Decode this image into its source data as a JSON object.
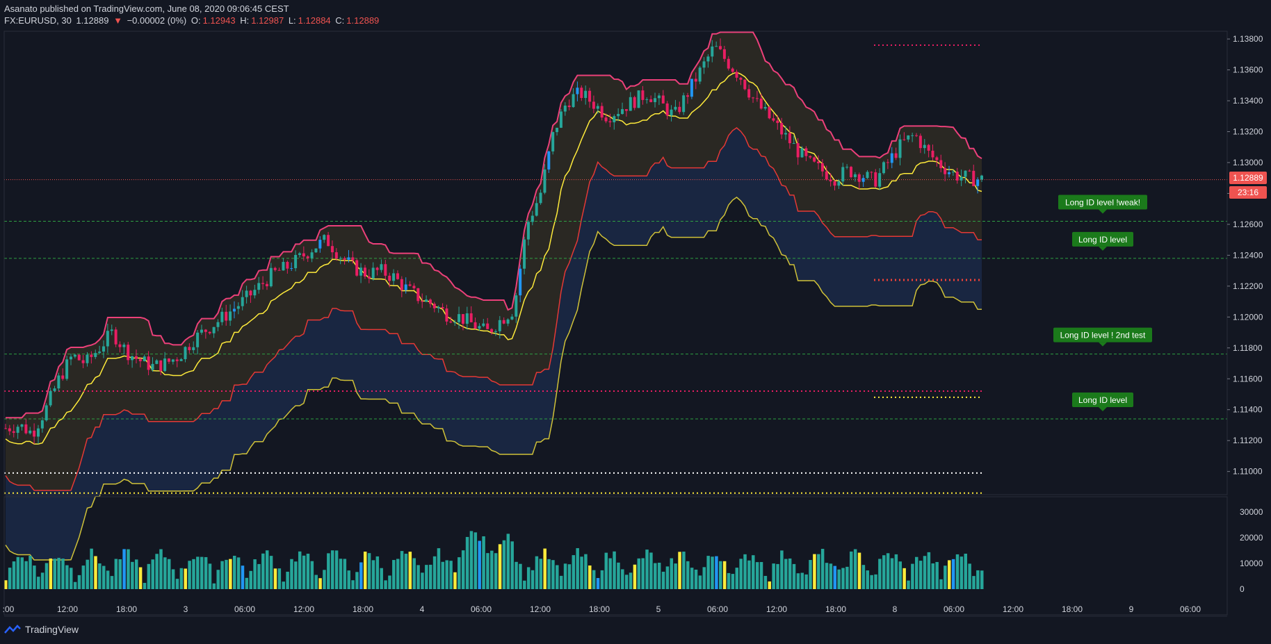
{
  "header": {
    "publisher": "Asanato",
    "published_text": "published on TradingView.com, June 08, 2020 09:06:45 CEST",
    "symbol": "FX:EURUSD, 30",
    "last": "1.12889",
    "change": "−0.00002 (0%)",
    "o_label": "O:",
    "o": "1.12943",
    "h_label": "H:",
    "h": "1.12987",
    "l_label": "L:",
    "l": "1.12884",
    "c_label": "C:",
    "c": "1.12889"
  },
  "price_tag": {
    "price": "1.12889",
    "countdown": "23:16"
  },
  "footer": {
    "brand": "TradingView"
  },
  "colors": {
    "background": "#131722",
    "bull": "#26a69a",
    "bear": "#ef5350",
    "pink": "#e91e63",
    "band_pink": "#ec407a",
    "yellow": "#ffeb3b",
    "green_line": "#2e7d32",
    "label_green": "#1b7a1b"
  },
  "chart_data": {
    "type": "candlestick",
    "symbol": "FX:EURUSD",
    "timeframe": "30",
    "ylim": [
      1.1085,
      1.1385
    ],
    "price_ticks": [
      "1.13800",
      "1.13600",
      "1.13400",
      "1.13200",
      "1.13000",
      "1.12800",
      "1.12600",
      "1.12400",
      "1.12200",
      "1.12000",
      "1.11800",
      "1.11600",
      "1.11400",
      "1.11200",
      "1.11000"
    ],
    "x_ticks": [
      ":00",
      "12:00",
      "18:00",
      "3",
      "06:00",
      "12:00",
      "18:00",
      "4",
      "06:00",
      "12:00",
      "18:00",
      "5",
      "06:00",
      "12:00",
      "18:00",
      "8",
      "06:00",
      "12:00",
      "18:00",
      "9",
      "06:00"
    ],
    "volume_ticks": [
      "30000",
      "20000",
      "10000",
      "0"
    ],
    "volume_ylim": [
      0,
      33000
    ],
    "long_levels": [
      {
        "label": "Long ID level !weak!",
        "price": 1.1262
      },
      {
        "label": "Long ID level",
        "price": 1.1238
      },
      {
        "label": "Long ID level ! 2nd test",
        "price": 1.1176
      },
      {
        "label": "Long ID level",
        "price": 1.1134
      }
    ],
    "dotted_levels": [
      {
        "price": 1.1376,
        "color": "#e91e63"
      },
      {
        "price": 1.1224,
        "color": "#f44336"
      },
      {
        "price": 1.1152,
        "color": "#e91e63"
      },
      {
        "price": 1.1148,
        "color": "#ffeb3b"
      },
      {
        "price": 1.1099,
        "color": "#ffffff"
      },
      {
        "price": 1.1086,
        "color": "#ffeb3b"
      }
    ],
    "close_path": [
      1.1128,
      1.113,
      1.1125,
      1.114,
      1.116,
      1.1175,
      1.117,
      1.118,
      1.119,
      1.1178,
      1.1172,
      1.1168,
      1.117,
      1.1175,
      1.1185,
      1.1192,
      1.1198,
      1.1205,
      1.1212,
      1.122,
      1.1228,
      1.1232,
      1.1238,
      1.1245,
      1.125,
      1.124,
      1.1232,
      1.1228,
      1.123,
      1.1226,
      1.1218,
      1.1212,
      1.1208,
      1.1202,
      1.12,
      1.1195,
      1.119,
      1.1198,
      1.1205,
      1.126,
      1.128,
      1.132,
      1.134,
      1.1345,
      1.1338,
      1.133,
      1.1335,
      1.134,
      1.1345,
      1.1338,
      1.133,
      1.1345,
      1.136,
      1.1375,
      1.1365,
      1.1355,
      1.134,
      1.133,
      1.132,
      1.131,
      1.13,
      1.1295,
      1.129,
      1.1295,
      1.1292,
      1.1288,
      1.13,
      1.1312,
      1.1318,
      1.1306,
      1.1298,
      1.1292,
      1.129,
      1.1289
    ]
  }
}
